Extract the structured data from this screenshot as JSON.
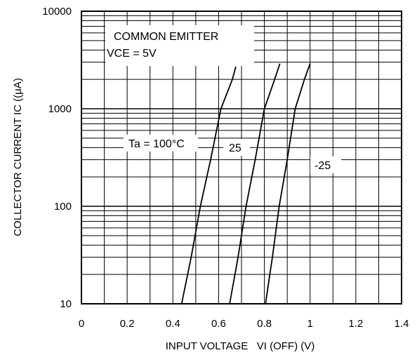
{
  "chart_data": {
    "type": "line",
    "title": "",
    "xlabel": "INPUT VOLTAGE   VI (OFF) (V)",
    "ylabel": "COLLECTOR CURRENT   IC ((μA)",
    "xlim": [
      0,
      1.4
    ],
    "ylim": [
      10,
      10000
    ],
    "yscale": "log",
    "grid": true,
    "x_ticks": [
      "0",
      "0.2",
      "0.4",
      "0.6",
      "0.8",
      "1",
      "1.2",
      "1.4"
    ],
    "y_ticks": [
      "10",
      "100",
      "1000",
      "10000"
    ],
    "annotations": [
      "COMMON EMITTER",
      "VCE = 5V"
    ],
    "series": [
      {
        "name": "Ta = 100°C",
        "points": [
          [
            0.438,
            10
          ],
          [
            0.48,
            30
          ],
          [
            0.52,
            100
          ],
          [
            0.565,
            300
          ],
          [
            0.61,
            1000
          ],
          [
            0.66,
            2000
          ],
          [
            0.675,
            2700
          ]
        ]
      },
      {
        "name": "25",
        "points": [
          [
            0.648,
            10
          ],
          [
            0.685,
            30
          ],
          [
            0.72,
            100
          ],
          [
            0.76,
            300
          ],
          [
            0.8,
            1000
          ],
          [
            0.845,
            2000
          ],
          [
            0.868,
            2900
          ]
        ]
      },
      {
        "name": "-25",
        "points": [
          [
            0.805,
            10
          ],
          [
            0.835,
            30
          ],
          [
            0.865,
            100
          ],
          [
            0.9,
            300
          ],
          [
            0.935,
            1000
          ],
          [
            0.975,
            2000
          ],
          [
            1.0,
            2900
          ]
        ]
      }
    ]
  }
}
